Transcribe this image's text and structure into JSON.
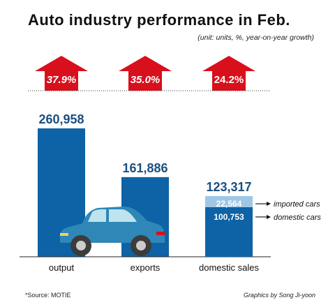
{
  "header": {
    "title": "Auto industry performance in Feb.",
    "unit_note": "(unit: units, %, year-on-year growth)"
  },
  "chart_data": {
    "type": "bar",
    "title": "Auto industry performance in Feb.",
    "categories": [
      "output",
      "exports",
      "domestic sales"
    ],
    "values": [
      260958,
      161886,
      123317
    ],
    "value_labels": [
      "260,958",
      "161,886",
      "123,317"
    ],
    "growth_labels": [
      "37.9%",
      "35.0%",
      "24.2%"
    ],
    "growth": [
      37.9,
      35.0,
      24.2
    ],
    "domestic_breakdown": {
      "segments": [
        {
          "name": "domestic cars",
          "value": 100753,
          "label": "100,753"
        },
        {
          "name": "imported cars",
          "value": 22564,
          "label": "22,564"
        }
      ]
    },
    "ylim": [
      0,
      270000
    ],
    "grid": false
  },
  "colors": {
    "bar": "#0d63a5",
    "imported": "#9ec7e6",
    "arrow": "#d8101c",
    "label": "#1a4f80",
    "car": "#2e87b7"
  },
  "footer": {
    "source": "*Source: MOTIE",
    "credit": "Graphics by Song Ji-yoon"
  }
}
